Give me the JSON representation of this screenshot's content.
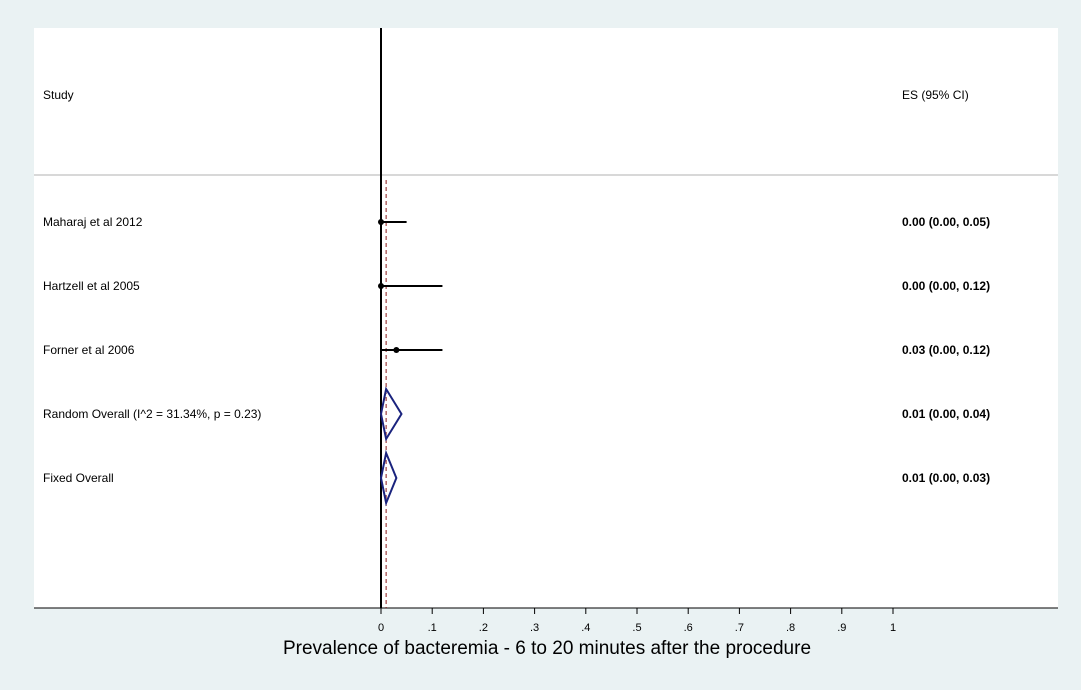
{
  "chart_data": {
    "type": "forest",
    "header": {
      "study_label": "Study",
      "es_label": "ES (95% CI)"
    },
    "xlabel": "Prevalence of bacteremia - 6 to 20 minutes after the procedure",
    "xlim": [
      0,
      1
    ],
    "xticks": [
      "0",
      ".1",
      ".2",
      ".3",
      ".4",
      ".5",
      ".6",
      ".7",
      ".8",
      ".9",
      "1"
    ],
    "studies": [
      {
        "label": "Maharaj et al 2012",
        "es": 0.0,
        "lo": 0.0,
        "hi": 0.05,
        "text": "0.00 (0.00, 0.05)"
      },
      {
        "label": "Hartzell et al 2005",
        "es": 0.0,
        "lo": 0.0,
        "hi": 0.12,
        "text": "0.00 (0.00, 0.12)"
      },
      {
        "label": "Forner et al 2006",
        "es": 0.03,
        "lo": 0.0,
        "hi": 0.12,
        "text": "0.03 (0.00, 0.12)"
      }
    ],
    "summaries": [
      {
        "label": "Random Overall  (I^2 = 31.34%, p = 0.23)",
        "es": 0.01,
        "lo": 0.0,
        "hi": 0.04,
        "text": "0.01 (0.00, 0.04)"
      },
      {
        "label": "Fixed Overall",
        "es": 0.01,
        "lo": 0.0,
        "hi": 0.03,
        "text": "0.01 (0.00, 0.03)"
      }
    ],
    "reference_line": 0,
    "colors": {
      "background": "#eaf2f3",
      "panel": "#ffffff",
      "study_marker": "#000000",
      "diamond": "#1a237e",
      "overall_line": "#8b1a1a",
      "header_rule": "#b0b0b0"
    }
  }
}
